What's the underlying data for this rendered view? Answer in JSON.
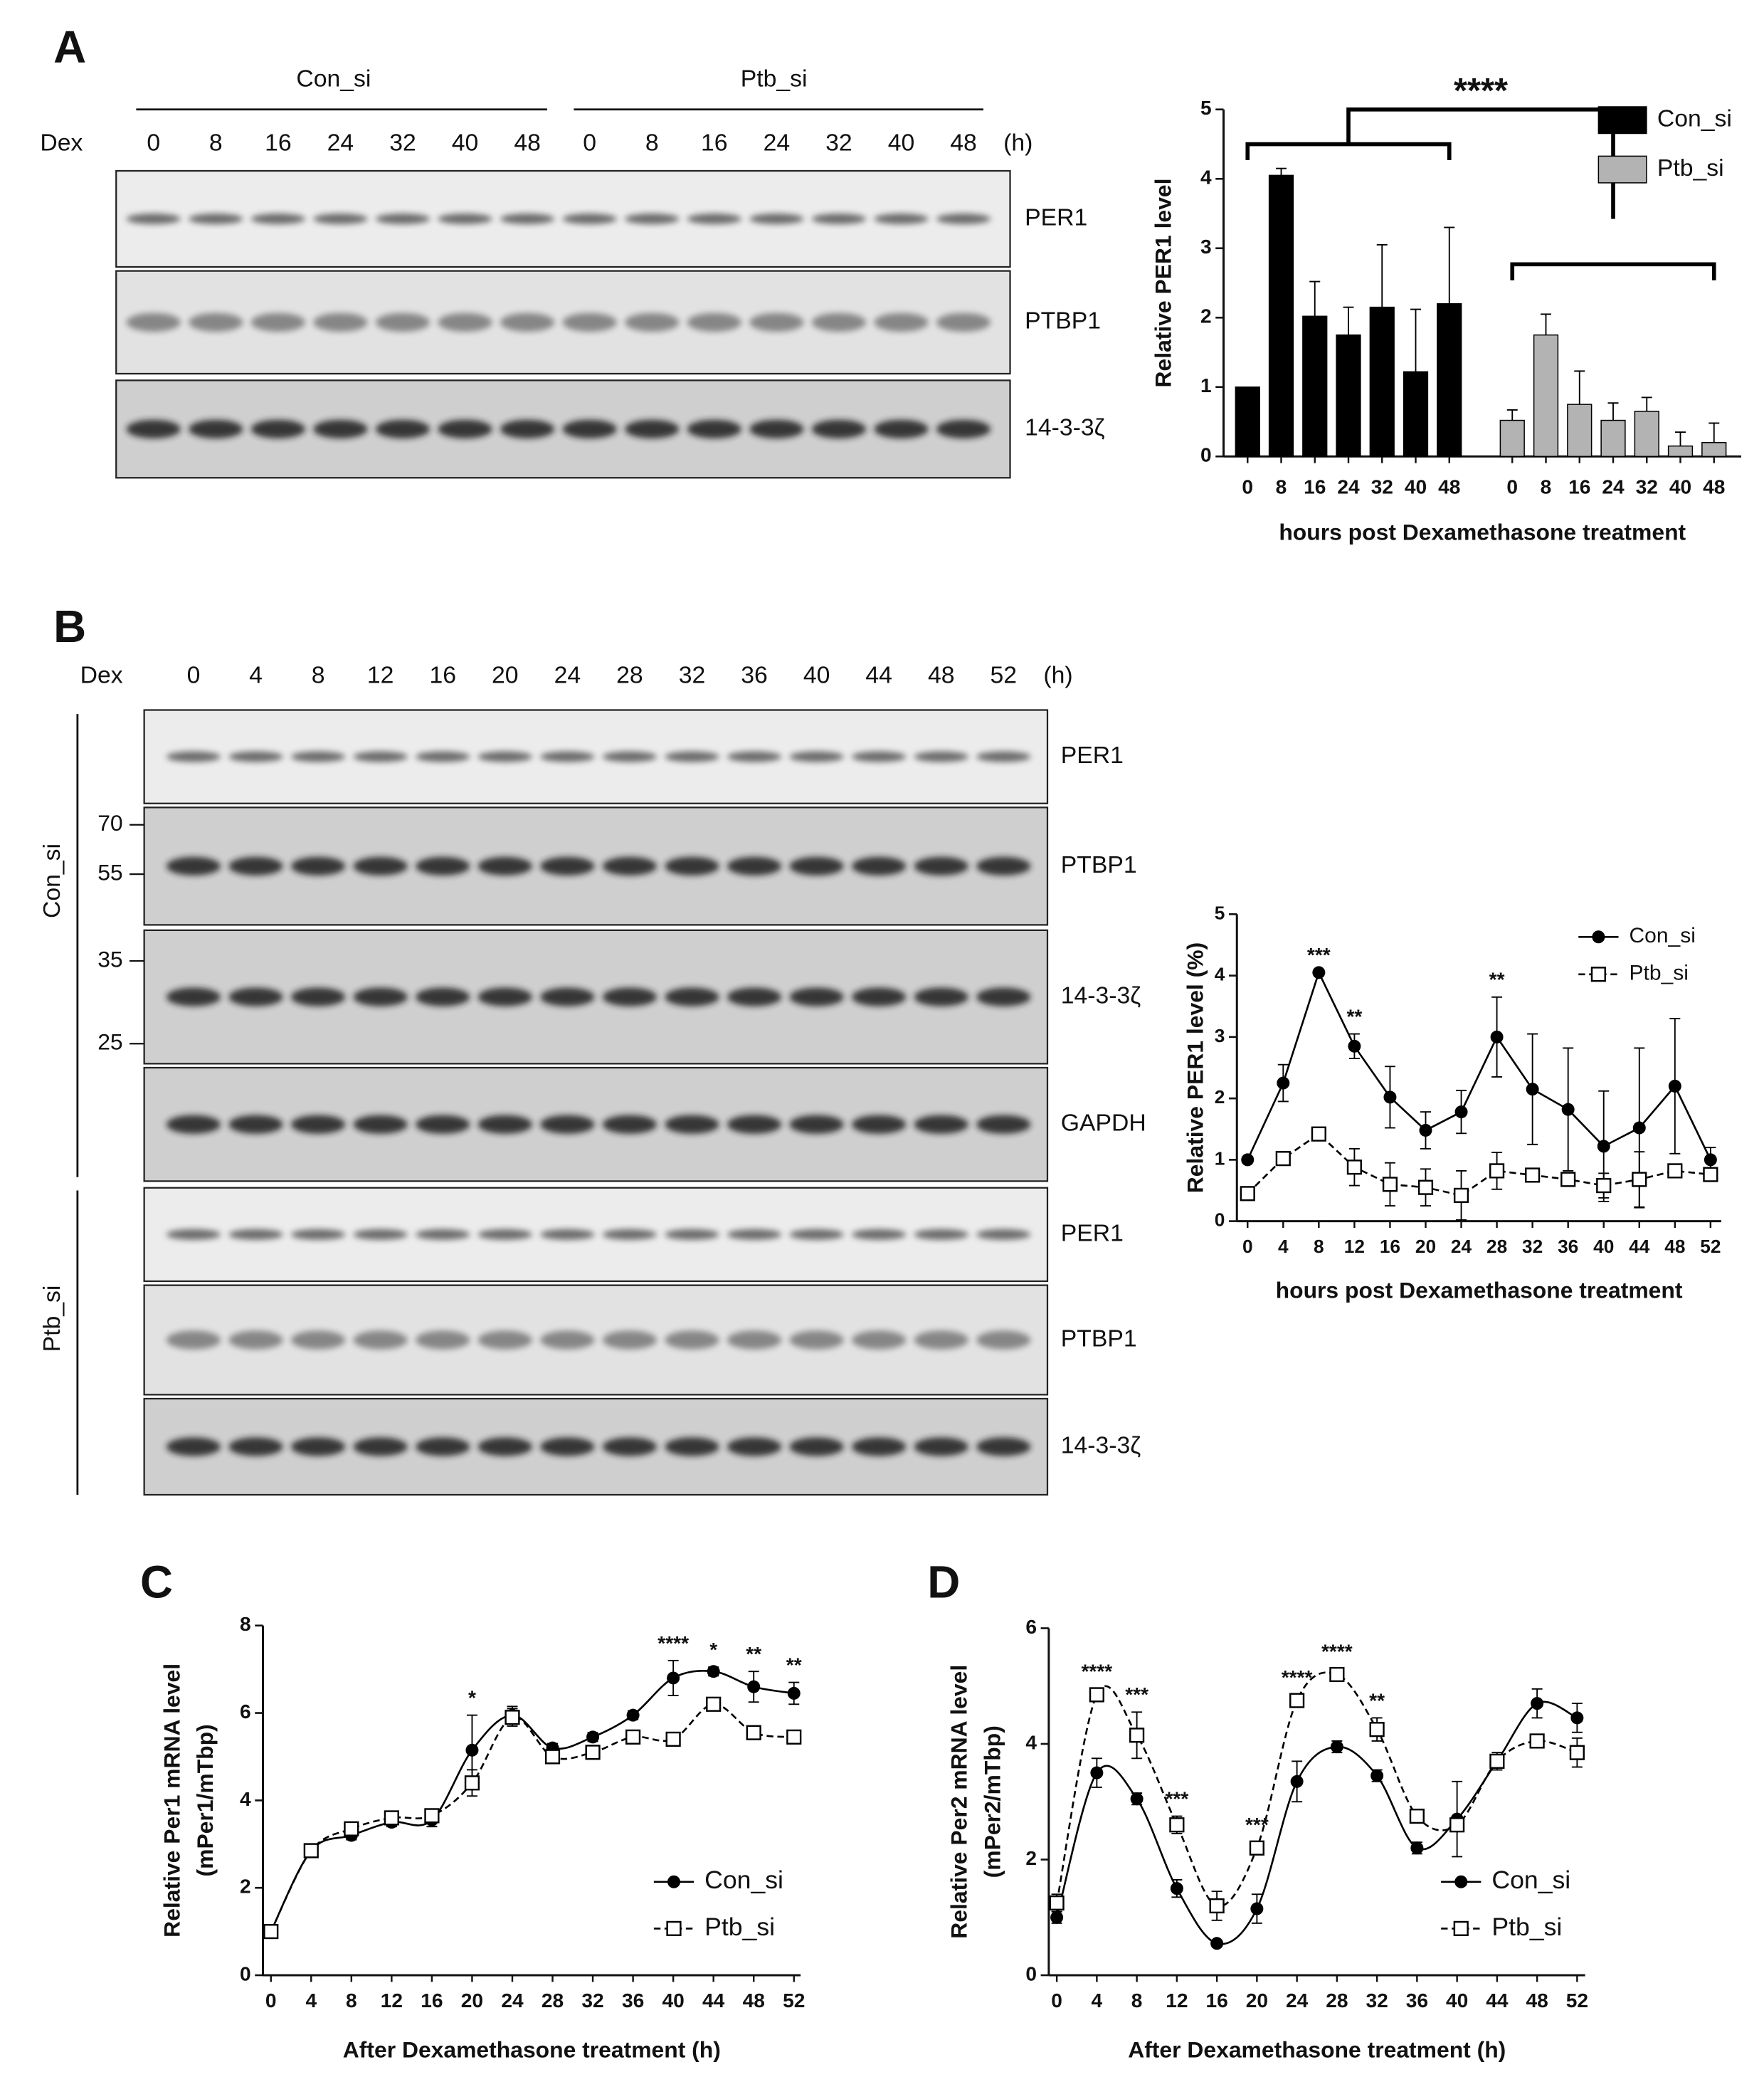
{
  "panel_labels": [
    "A",
    "B",
    "C",
    "D"
  ],
  "blot_a": {
    "dex": "Dex",
    "unit": "(h)",
    "groups": [
      "Con_si",
      "Ptb_si"
    ],
    "times": [
      "0",
      "8",
      "16",
      "24",
      "32",
      "40",
      "48",
      "0",
      "8",
      "16",
      "24",
      "32",
      "40",
      "48"
    ],
    "rows": [
      "PER1",
      "PTBP1",
      "14-3-3ζ"
    ]
  },
  "blot_b": {
    "dex": "Dex",
    "unit": "(h)",
    "groups": [
      "Con_si",
      "Ptb_si"
    ],
    "times": [
      "0",
      "4",
      "8",
      "12",
      "16",
      "20",
      "24",
      "28",
      "32",
      "36",
      "40",
      "44",
      "48",
      "52"
    ],
    "markers": [
      "70",
      "55",
      "35",
      "25"
    ],
    "con_rows": [
      "PER1",
      "PTBP1",
      "14-3-3ζ",
      "GAPDH"
    ],
    "ptb_rows": [
      "PER1",
      "PTBP1",
      "14-3-3ζ"
    ]
  },
  "chart_data": [
    {
      "type": "bar",
      "ylabel": "Relative PER1 level",
      "xlabel": "hours post Dexamethasone treatment",
      "categories": [
        "0",
        "8",
        "16",
        "24",
        "32",
        "40",
        "48",
        "0",
        "8",
        "16",
        "24",
        "32",
        "40",
        "48"
      ],
      "series": [
        {
          "name": "Con_si",
          "color": "#000000",
          "values": [
            1,
            4.05,
            2.02,
            1.75,
            2.15,
            1.22,
            2.2,
            null,
            null,
            null,
            null,
            null,
            null,
            null
          ],
          "errors": [
            0,
            0.1,
            0.5,
            0.4,
            0.9,
            0.9,
            1.1,
            null,
            null,
            null,
            null,
            null,
            null,
            null
          ]
        },
        {
          "name": "Ptb_si",
          "color": "#b3b3b3",
          "values": [
            null,
            null,
            null,
            null,
            null,
            null,
            null,
            0.52,
            1.75,
            0.75,
            0.52,
            0.65,
            0.15,
            0.2
          ],
          "errors": [
            null,
            null,
            null,
            null,
            null,
            null,
            null,
            0.15,
            0.3,
            0.48,
            0.25,
            0.2,
            0.2,
            0.28
          ]
        }
      ],
      "errors_up_only": true,
      "ylim": [
        0,
        5
      ],
      "yticks": [
        0,
        1,
        2,
        3,
        4,
        5
      ],
      "annotations": [
        {
          "text": "****"
        }
      ],
      "legend": "upper right"
    },
    {
      "type": "line",
      "ylabel": "Relative PER1 level (%)",
      "xlabel": "hours post Dexamethasone treatment",
      "x": [
        0,
        4,
        8,
        12,
        16,
        20,
        24,
        28,
        32,
        36,
        40,
        44,
        48,
        52
      ],
      "series": [
        {
          "name": "Con_si",
          "color": "#000000",
          "marker": "circle",
          "dashed": false,
          "values": [
            1,
            2.25,
            4.05,
            2.85,
            2.02,
            1.48,
            1.78,
            3.0,
            2.15,
            1.82,
            1.22,
            1.52,
            2.2,
            1.0
          ],
          "errors": [
            0,
            0.3,
            0,
            0.2,
            0.5,
            0.3,
            0.35,
            0.65,
            0.9,
            1.0,
            0.9,
            1.3,
            1.1,
            0.2
          ]
        },
        {
          "name": "Ptb_si",
          "color": "#000000",
          "marker": "square",
          "dashed": true,
          "values": [
            0.45,
            1.02,
            1.42,
            0.88,
            0.6,
            0.55,
            0.42,
            0.82,
            0.75,
            0.68,
            0.58,
            0.68,
            0.82,
            0.76
          ],
          "errors": [
            0,
            0.05,
            0.05,
            0.3,
            0.35,
            0.3,
            0.4,
            0.3,
            0.1,
            0.1,
            0.2,
            0.45,
            0.1,
            0.1
          ]
        }
      ],
      "smooth": false,
      "xlim": [
        0,
        52
      ],
      "xticks": [
        0,
        4,
        8,
        12,
        16,
        20,
        24,
        28,
        32,
        36,
        40,
        44,
        48,
        52
      ],
      "ylim": [
        0,
        5
      ],
      "yticks": [
        0,
        1,
        2,
        3,
        4,
        5
      ],
      "annotations": [
        {
          "x": 8,
          "text": "***"
        },
        {
          "x": 12,
          "text": "**"
        },
        {
          "x": 28,
          "text": "**"
        }
      ],
      "legend": "upper right"
    },
    {
      "type": "line",
      "ylabel": [
        "Relative Per1 mRNA level",
        "(mPer1/mTbp)"
      ],
      "xlabel": "After Dexamethasone treatment (h)",
      "x": [
        0,
        4,
        8,
        12,
        16,
        20,
        24,
        28,
        32,
        36,
        40,
        44,
        48,
        52
      ],
      "series": [
        {
          "name": "Con_si",
          "color": "#000000",
          "marker": "circle",
          "dashed": false,
          "values": [
            1.0,
            2.85,
            3.2,
            3.5,
            3.55,
            5.15,
            5.95,
            5.2,
            5.45,
            5.95,
            6.8,
            6.95,
            6.6,
            6.45
          ],
          "errors": [
            0.1,
            0.1,
            0.1,
            0.1,
            0.15,
            0.8,
            0.2,
            0.1,
            0.1,
            0.1,
            0.4,
            0.1,
            0.35,
            0.25
          ]
        },
        {
          "name": "Ptb_si",
          "color": "#000000",
          "marker": "square",
          "dashed": true,
          "values": [
            1.0,
            2.85,
            3.35,
            3.6,
            3.65,
            4.4,
            5.9,
            5.0,
            5.1,
            5.45,
            5.4,
            6.2,
            5.55,
            5.45
          ],
          "errors": [
            0.1,
            0.1,
            0.1,
            0.1,
            0.1,
            0.3,
            0.2,
            0.15,
            0.1,
            0.1,
            0.1,
            0.1,
            0.1,
            0.1
          ]
        }
      ],
      "smooth": true,
      "xlim": [
        0,
        52
      ],
      "xticks": [
        0,
        4,
        8,
        12,
        16,
        20,
        24,
        28,
        32,
        36,
        40,
        44,
        48,
        52
      ],
      "ylim": [
        0,
        8
      ],
      "yticks": [
        0,
        2,
        4,
        6,
        8
      ],
      "annotations": [
        {
          "x": 20,
          "text": "*"
        },
        {
          "x": 40,
          "text": "****"
        },
        {
          "x": 44,
          "text": "*"
        },
        {
          "x": 48,
          "text": "**"
        },
        {
          "x": 52,
          "text": "**"
        }
      ],
      "legend": "lower right"
    },
    {
      "type": "line",
      "ylabel": [
        "Relative Per2 mRNA level",
        "(mPer2/mTbp)"
      ],
      "xlabel": "After Dexamethasone treatment (h)",
      "x": [
        0,
        4,
        8,
        12,
        16,
        20,
        24,
        28,
        32,
        36,
        40,
        44,
        48,
        52
      ],
      "series": [
        {
          "name": "Con_si",
          "color": "#000000",
          "marker": "circle",
          "dashed": false,
          "values": [
            1.0,
            3.5,
            3.05,
            1.5,
            0.55,
            1.15,
            3.35,
            3.95,
            3.45,
            2.2,
            2.7,
            3.7,
            4.7,
            4.45
          ],
          "errors": [
            0.1,
            0.25,
            0.1,
            0.15,
            0.05,
            0.25,
            0.35,
            0.1,
            0.1,
            0.1,
            0.65,
            0.15,
            0.25,
            0.25
          ]
        },
        {
          "name": "Ptb_si",
          "color": "#000000",
          "marker": "square",
          "dashed": true,
          "values": [
            1.25,
            4.85,
            4.15,
            2.6,
            1.2,
            2.2,
            4.75,
            5.2,
            4.25,
            2.75,
            2.6,
            3.7,
            4.05,
            3.85
          ],
          "errors": [
            0.15,
            0.1,
            0.4,
            0.15,
            0.25,
            0.1,
            0.1,
            0.1,
            0.2,
            0.1,
            0.1,
            0.1,
            0.1,
            0.25
          ]
        }
      ],
      "smooth": true,
      "xlim": [
        0,
        52
      ],
      "xticks": [
        0,
        4,
        8,
        12,
        16,
        20,
        24,
        28,
        32,
        36,
        40,
        44,
        48,
        52
      ],
      "ylim": [
        0,
        6
      ],
      "yticks": [
        0,
        2,
        4,
        6
      ],
      "annotations": [
        {
          "x": 4,
          "text": "****"
        },
        {
          "x": 8,
          "text": "***"
        },
        {
          "x": 12,
          "text": "***"
        },
        {
          "x": 20,
          "text": "***"
        },
        {
          "x": 24,
          "text": "****"
        },
        {
          "x": 28,
          "text": "****"
        },
        {
          "x": 32,
          "text": "**"
        }
      ],
      "legend": "lower right"
    }
  ]
}
